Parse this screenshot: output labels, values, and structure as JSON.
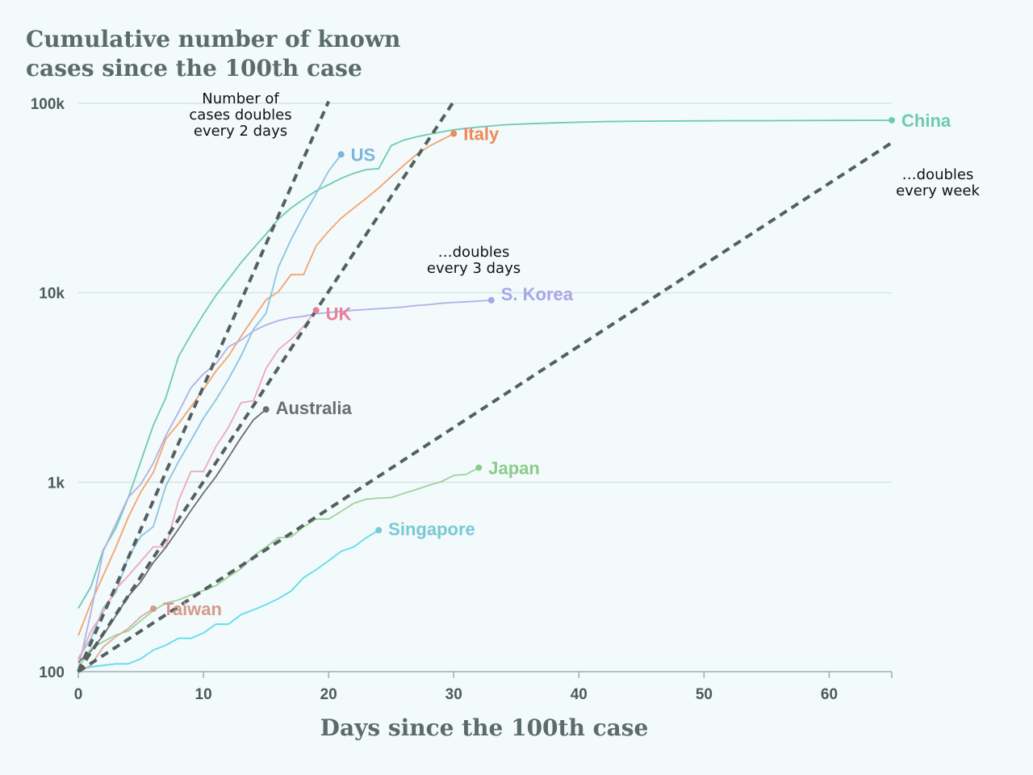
{
  "chart_data": {
    "type": "line",
    "title_lines": [
      "Cumulative number of known",
      "cases since the 100th case"
    ],
    "xlabel": "Days since the 100th case",
    "ylabel": "",
    "x_scale": "linear",
    "y_scale": "log",
    "xlim": [
      0,
      65
    ],
    "ylim": [
      100,
      100000
    ],
    "x_ticks": [
      0,
      10,
      20,
      30,
      40,
      50,
      60
    ],
    "x_tick_labels": [
      "0",
      "10",
      "20",
      "30",
      "40",
      "50",
      "60"
    ],
    "y_ticks": [
      100,
      1000,
      10000,
      100000
    ],
    "y_tick_labels": [
      "100",
      "1k",
      "10k",
      "100k"
    ],
    "grid": "horizontal",
    "reference_lines": [
      {
        "label_lines": [
          "Number of",
          "cases doubles",
          "every 2 days"
        ],
        "doubling_days": 2,
        "x": [
          0,
          20
        ],
        "y": [
          100,
          102400
        ]
      },
      {
        "label_lines": [
          "…doubles",
          "every 3 days"
        ],
        "doubling_days": 3,
        "x": [
          0,
          30
        ],
        "y": [
          100,
          102400
        ]
      },
      {
        "label_lines": [
          "…doubles",
          "every week"
        ],
        "doubling_days": 7,
        "x": [
          0,
          65
        ],
        "y": [
          100,
          62000
        ]
      }
    ],
    "series": [
      {
        "name": "China",
        "color": "#6fcab0",
        "label_color": "#6fcab0",
        "x": [
          0,
          1,
          2,
          3,
          4,
          5,
          6,
          7,
          8,
          9,
          10,
          11,
          12,
          13,
          14,
          15,
          16,
          17,
          18,
          19,
          20,
          21,
          22,
          23,
          24,
          25,
          26,
          27,
          28,
          29,
          30,
          32,
          34,
          36,
          38,
          40,
          42,
          45,
          50,
          55,
          60,
          65
        ],
        "y": [
          216,
          280,
          440,
          571,
          830,
          1290,
          2000,
          2800,
          4600,
          6000,
          7700,
          9700,
          11800,
          14400,
          17200,
          20400,
          24500,
          28000,
          31200,
          34500,
          37200,
          40200,
          42700,
          44700,
          45200,
          59800,
          63900,
          66500,
          68600,
          70600,
          72500,
          75000,
          77000,
          78000,
          78900,
          79500,
          80100,
          80500,
          80800,
          81000,
          81200,
          81400
        ]
      },
      {
        "name": "Italy",
        "color": "#f5a36c",
        "label_color": "#f0885a",
        "x": [
          0,
          1,
          2,
          3,
          4,
          5,
          6,
          7,
          8,
          9,
          10,
          11,
          12,
          13,
          14,
          15,
          16,
          17,
          18,
          19,
          20,
          21,
          22,
          23,
          24,
          25,
          26,
          27,
          28,
          29,
          30
        ],
        "y": [
          155,
          229,
          322,
          453,
          655,
          888,
          1128,
          1694,
          2036,
          2502,
          3089,
          3858,
          4636,
          5883,
          7375,
          9172,
          10149,
          12462,
          12462,
          17660,
          21157,
          24747,
          27980,
          31506,
          35713,
          41035,
          47021,
          53578,
          59138,
          63927,
          69176
        ]
      },
      {
        "name": "US",
        "color": "#8cc4de",
        "label_color": "#7ab6dc",
        "x": [
          0,
          1,
          2,
          3,
          4,
          5,
          6,
          7,
          8,
          9,
          10,
          11,
          12,
          13,
          14,
          15,
          16,
          17,
          18,
          19,
          20,
          21
        ],
        "y": [
          118,
          149,
          217,
          262,
          402,
          518,
          583,
          959,
          1281,
          1663,
          2179,
          2727,
          3499,
          4632,
          6421,
          7786,
          13680,
          19100,
          25489,
          33276,
          43847,
          53740
        ]
      },
      {
        "name": "S. Korea",
        "color": "#b0b1e4",
        "label_color": "#a9a6e6",
        "x": [
          0,
          1,
          2,
          3,
          4,
          5,
          6,
          7,
          8,
          9,
          10,
          11,
          12,
          13,
          14,
          15,
          16,
          17,
          18,
          19,
          20,
          21,
          22,
          23,
          24,
          25,
          26,
          27,
          28,
          29,
          30,
          31,
          32,
          33
        ],
        "y": [
          104,
          204,
          433,
          602,
          833,
          977,
          1261,
          1766,
          2337,
          3150,
          3736,
          4212,
          5186,
          5621,
          6284,
          6767,
          7134,
          7382,
          7513,
          7755,
          7869,
          7979,
          8086,
          8162,
          8236,
          8320,
          8413,
          8565,
          8652,
          8799,
          8897,
          8961,
          9037,
          9137
        ]
      },
      {
        "name": "UK",
        "color": "#f0a8b8",
        "label_color": "#e97e98",
        "x": [
          0,
          1,
          2,
          3,
          4,
          5,
          6,
          7,
          8,
          9,
          10,
          11,
          12,
          13,
          14,
          15,
          16,
          17,
          18,
          19
        ],
        "y": [
          115,
          163,
          206,
          273,
          321,
          382,
          456,
          456,
          798,
          1140,
          1140,
          1543,
          1950,
          2626,
          2689,
          3983,
          5018,
          5683,
          6650,
          8077
        ]
      },
      {
        "name": "Australia",
        "color": "#6a6e6e",
        "label_color": "#6a6e6e",
        "x": [
          0,
          1,
          2,
          3,
          4,
          5,
          6,
          7,
          8,
          9,
          10,
          11,
          12,
          13,
          14,
          15
        ],
        "y": [
          112,
          128,
          156,
          197,
          250,
          298,
          377,
          454,
          565,
          709,
          877,
          1071,
          1352,
          1716,
          2136,
          2423
        ]
      },
      {
        "name": "Japan",
        "color": "#9ed39a",
        "label_color": "#8ccb89",
        "x": [
          0,
          1,
          2,
          3,
          4,
          5,
          6,
          7,
          8,
          9,
          10,
          11,
          12,
          13,
          14,
          15,
          16,
          17,
          18,
          19,
          20,
          21,
          22,
          23,
          24,
          25,
          26,
          27,
          28,
          29,
          30,
          31,
          32
        ],
        "y": [
          105,
          132,
          144,
          156,
          164,
          186,
          210,
          230,
          239,
          254,
          268,
          284,
          317,
          349,
          408,
          455,
          510,
          514,
          581,
          639,
          639,
          701,
          773,
          814,
          824,
          829,
          873,
          914,
          963,
          1007,
          1086,
          1101,
          1193
        ]
      },
      {
        "name": "Singapore",
        "color": "#5fdcf0",
        "label_color": "#79c8d6",
        "x": [
          0,
          1,
          2,
          3,
          4,
          5,
          6,
          7,
          8,
          9,
          10,
          11,
          12,
          13,
          14,
          15,
          16,
          17,
          18,
          19,
          20,
          21,
          22,
          23,
          24
        ],
        "y": [
          102,
          106,
          108,
          110,
          110,
          117,
          130,
          138,
          150,
          150,
          160,
          178,
          178,
          200,
          212,
          226,
          243,
          266,
          313,
          345,
          385,
          432,
          455,
          509,
          558
        ]
      },
      {
        "name": "Taiwan",
        "color": "#d9ad9c",
        "label_color": "#d69a8a",
        "x": [
          0,
          1,
          2,
          3,
          4,
          5,
          6
        ],
        "y": [
          100,
          108,
          135,
          153,
          169,
          195,
          215
        ]
      }
    ]
  }
}
